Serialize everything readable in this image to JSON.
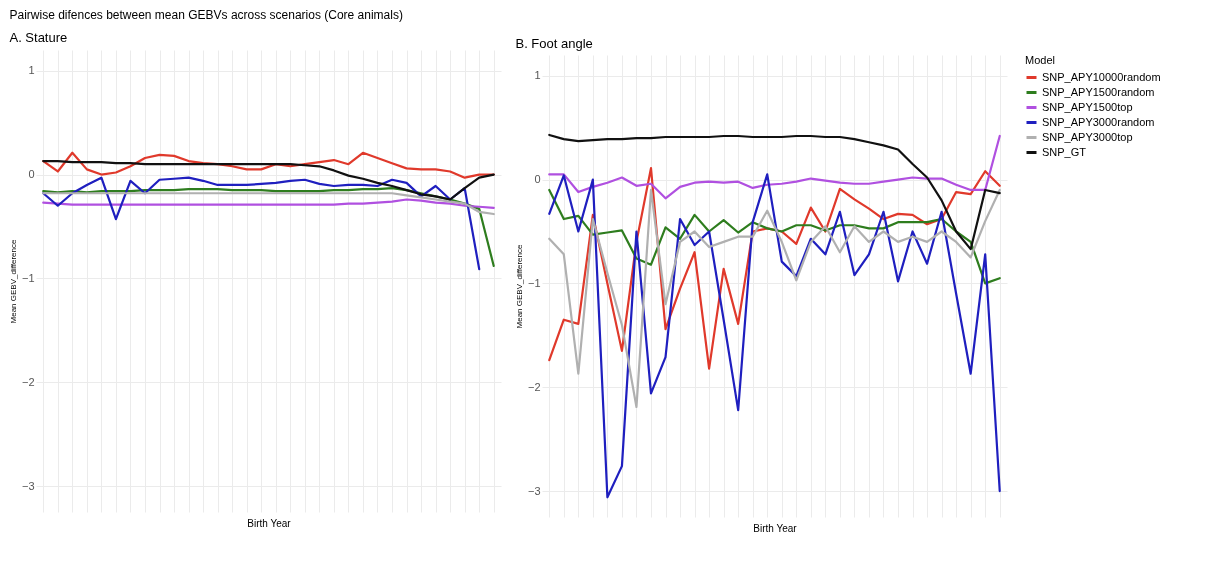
{
  "chart_data": [
    {
      "type": "line",
      "title": "Pairwise difences between mean GEBVs across scenarios (Core animals)",
      "subtitle": "A. Stature",
      "xlabel": "Birth Year",
      "ylabel": "Mean GEBV_difference",
      "categories": [
        null,
        null,
        null,
        null,
        null,
        null,
        null,
        null,
        null,
        null,
        null,
        null,
        null,
        null,
        null,
        null,
        null,
        null,
        null,
        null,
        null,
        null,
        null,
        null,
        null,
        null,
        null,
        null,
        null,
        null,
        null,
        null
      ],
      "ylim": [
        -3.25,
        1.2
      ],
      "yticks": [
        -3,
        -2,
        -1,
        0,
        1
      ],
      "grid": true,
      "legend": false,
      "series": [
        {
          "color": "#e0392b",
          "values": [
            0.13,
            0.03,
            0.21,
            0.05,
            0,
            0.02,
            0.08,
            0.16,
            0.19,
            0.18,
            0.13,
            0.11,
            0.1,
            0.08,
            0.05,
            0.05,
            0.1,
            0.08,
            0.1,
            0.12,
            0.14,
            0.1,
            0.21,
            0.16,
            0.11,
            0.06,
            0.05,
            0.05,
            0.03,
            -0.03,
            0,
            0
          ]
        },
        {
          "color": "#2e7d1e",
          "values": [
            -0.16,
            -0.17,
            -0.16,
            -0.17,
            -0.16,
            -0.16,
            -0.16,
            -0.15,
            -0.15,
            -0.15,
            -0.14,
            -0.14,
            -0.14,
            -0.15,
            -0.15,
            -0.15,
            -0.16,
            -0.16,
            -0.16,
            -0.16,
            -0.15,
            -0.15,
            -0.14,
            -0.14,
            -0.13,
            -0.15,
            -0.18,
            -0.21,
            -0.24,
            -0.28,
            -0.33,
            -0.88
          ]
        },
        {
          "color": "#b050e0",
          "values": [
            -0.27,
            -0.28,
            -0.29,
            -0.29,
            -0.29,
            -0.29,
            -0.29,
            -0.29,
            -0.29,
            -0.29,
            -0.29,
            -0.29,
            -0.29,
            -0.29,
            -0.29,
            -0.29,
            -0.29,
            -0.29,
            -0.29,
            -0.29,
            -0.29,
            -0.28,
            -0.28,
            -0.27,
            -0.26,
            -0.24,
            -0.25,
            -0.27,
            -0.28,
            -0.3,
            -0.31,
            -0.32
          ]
        },
        {
          "color": "#1f1fbf",
          "values": [
            -0.18,
            -0.3,
            -0.18,
            -0.1,
            -0.03,
            -0.43,
            -0.06,
            -0.18,
            -0.05,
            -0.04,
            -0.03,
            -0.06,
            -0.1,
            -0.1,
            -0.1,
            -0.09,
            -0.08,
            -0.06,
            -0.05,
            -0.09,
            -0.11,
            -0.1,
            -0.1,
            -0.11,
            -0.05,
            -0.08,
            -0.21,
            -0.11,
            -0.24,
            -0.13,
            -0.91,
            null
          ]
        },
        {
          "color": "#b0b0b0",
          "values": [
            -0.18,
            -0.18,
            -0.18,
            -0.18,
            -0.18,
            -0.18,
            -0.18,
            -0.18,
            -0.18,
            -0.18,
            -0.18,
            -0.18,
            -0.18,
            -0.18,
            -0.18,
            -0.18,
            -0.18,
            -0.18,
            -0.18,
            -0.18,
            -0.18,
            -0.18,
            -0.18,
            -0.18,
            -0.18,
            -0.2,
            -0.22,
            -0.24,
            -0.26,
            -0.28,
            -0.36,
            -0.38
          ]
        },
        {
          "color": "#111111",
          "values": [
            0.13,
            0.13,
            0.12,
            0.12,
            0.12,
            0.11,
            0.11,
            0.1,
            0.1,
            0.1,
            0.1,
            0.1,
            0.1,
            0.1,
            0.1,
            0.1,
            0.1,
            0.1,
            0.09,
            0.08,
            0.04,
            -0.01,
            -0.04,
            -0.08,
            -0.11,
            -0.15,
            -0.19,
            -0.21,
            -0.24,
            -0.13,
            -0.03,
            0
          ]
        }
      ]
    },
    {
      "type": "line",
      "subtitle": "B. Foot angle",
      "xlabel": "Birth Year",
      "ylabel": "Mean GEBV_difference",
      "legend_title": "Model",
      "categories": [
        null,
        null,
        null,
        null,
        null,
        null,
        null,
        null,
        null,
        null,
        null,
        null,
        null,
        null,
        null,
        null,
        null,
        null,
        null,
        null,
        null,
        null,
        null,
        null,
        null,
        null,
        null,
        null,
        null,
        null,
        null,
        null
      ],
      "ylim": [
        -3.25,
        1.2
      ],
      "yticks": [
        -3,
        -2,
        -1,
        0,
        1
      ],
      "grid": true,
      "legend": "right",
      "series": [
        {
          "name": "SNP_APY10000random",
          "color": "#e0392b",
          "values": [
            -1.74,
            -1.35,
            -1.39,
            -0.34,
            -1.0,
            -1.65,
            -0.6,
            0.11,
            -1.44,
            -1.05,
            -0.7,
            -1.82,
            -0.86,
            -1.39,
            -0.5,
            -0.47,
            -0.5,
            -0.62,
            -0.27,
            -0.5,
            -0.09,
            -0.19,
            -0.28,
            -0.38,
            -0.33,
            -0.34,
            -0.43,
            -0.38,
            -0.12,
            -0.14,
            0.08,
            -0.06
          ]
        },
        {
          "name": "SNP_APY1500random",
          "color": "#2e7d1e",
          "values": [
            -0.1,
            -0.38,
            -0.35,
            -0.53,
            -0.51,
            -0.49,
            -0.76,
            -0.82,
            -0.46,
            -0.57,
            -0.34,
            -0.5,
            -0.39,
            -0.51,
            -0.41,
            -0.47,
            -0.5,
            -0.44,
            -0.44,
            -0.49,
            -0.44,
            -0.44,
            -0.47,
            -0.47,
            -0.41,
            -0.41,
            -0.41,
            -0.38,
            -0.5,
            -0.6,
            -1.0,
            -0.95
          ]
        },
        {
          "name": "SNP_APY1500top",
          "color": "#b050e0",
          "values": [
            0.05,
            0.05,
            -0.12,
            -0.07,
            -0.03,
            0.02,
            -0.06,
            -0.04,
            -0.18,
            -0.07,
            -0.03,
            -0.02,
            -0.03,
            -0.02,
            -0.08,
            -0.05,
            -0.04,
            -0.02,
            0.01,
            -0.01,
            -0.03,
            -0.04,
            -0.04,
            -0.02,
            0,
            0.02,
            0.01,
            0.01,
            -0.05,
            -0.1,
            -0.1,
            0.42
          ]
        },
        {
          "name": "SNP_APY3000random",
          "color": "#1f1fbf",
          "values": [
            -0.33,
            0.04,
            -0.5,
            0,
            -3.06,
            -2.76,
            -0.5,
            -2.06,
            -1.71,
            -0.38,
            -0.63,
            -0.5,
            -1.35,
            -2.22,
            -0.41,
            0.05,
            -0.79,
            -0.93,
            -0.57,
            -0.72,
            -0.31,
            -0.92,
            -0.72,
            -0.31,
            -0.98,
            -0.5,
            -0.81,
            -0.31,
            -1.1,
            -1.87,
            -0.72,
            -3.0
          ]
        },
        {
          "name": "SNP_APY3000top",
          "color": "#b0b0b0",
          "values": [
            -0.57,
            -0.72,
            -1.87,
            -0.38,
            -0.9,
            -1.4,
            -2.19,
            -0.1,
            -1.2,
            -0.6,
            -0.5,
            -0.65,
            -0.6,
            -0.55,
            -0.55,
            -0.3,
            -0.6,
            -0.97,
            -0.6,
            -0.45,
            -0.7,
            -0.45,
            -0.6,
            -0.5,
            -0.6,
            -0.55,
            -0.6,
            -0.5,
            -0.6,
            -0.75,
            -0.4,
            -0.1
          ]
        },
        {
          "name": "SNP_GT",
          "color": "#111111",
          "values": [
            0.43,
            0.39,
            0.37,
            0.38,
            0.39,
            0.39,
            0.4,
            0.4,
            0.41,
            0.41,
            0.41,
            0.41,
            0.42,
            0.42,
            0.41,
            0.41,
            0.41,
            0.42,
            0.42,
            0.41,
            0.41,
            0.39,
            0.36,
            0.33,
            0.29,
            0.15,
            0.02,
            -0.2,
            -0.5,
            -0.67,
            -0.1,
            -0.13
          ]
        }
      ]
    }
  ]
}
